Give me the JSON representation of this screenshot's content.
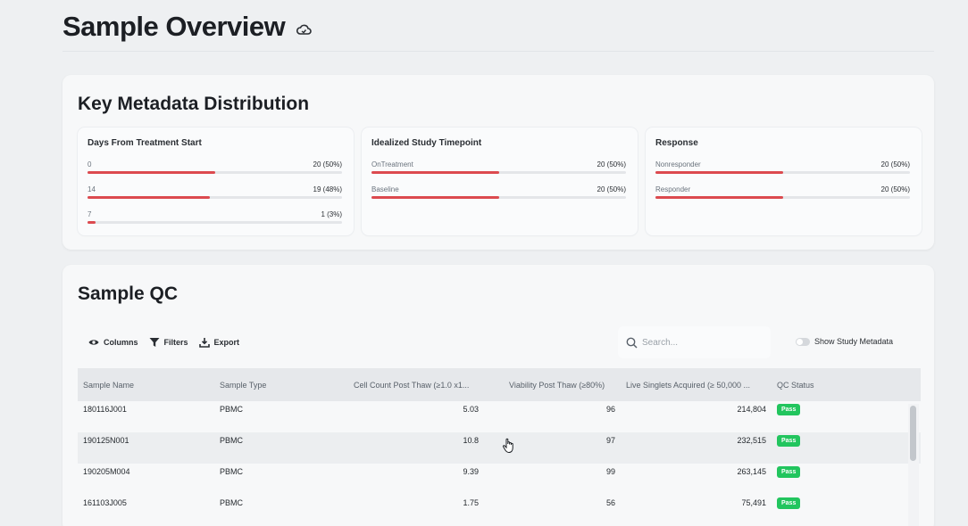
{
  "page": {
    "title": "Sample Overview",
    "title_icon": "cloud-icon"
  },
  "metadata": {
    "title": "Key Metadata Distribution",
    "groups": [
      {
        "title": "Days From Treatment Start",
        "rows": [
          {
            "label": "0",
            "value": "20 (50%)",
            "fraction": 0.5
          },
          {
            "label": "14",
            "value": "19 (48%)",
            "fraction": 0.48
          },
          {
            "label": "7",
            "value": "1 (3%)",
            "fraction": 0.03
          }
        ]
      },
      {
        "title": "Idealized Study Timepoint",
        "rows": [
          {
            "label": "OnTreatment",
            "value": "20 (50%)",
            "fraction": 0.5
          },
          {
            "label": "Baseline",
            "value": "20 (50%)",
            "fraction": 0.5
          }
        ]
      },
      {
        "title": "Response",
        "rows": [
          {
            "label": "Nonresponder",
            "value": "20 (50%)",
            "fraction": 0.5
          },
          {
            "label": "Responder",
            "value": "20 (50%)",
            "fraction": 0.5
          }
        ]
      }
    ]
  },
  "qc": {
    "title": "Sample QC",
    "toolbar": {
      "columns": "Columns",
      "filters": "Filters",
      "export": "Export"
    },
    "search": {
      "placeholder": "Search...",
      "value": ""
    },
    "toggle": {
      "label": "Show Study Metadata",
      "on": false
    },
    "columns": [
      "Sample Name",
      "Sample Type",
      "Cell Count Post Thaw (≥1.0 x1...",
      "Viability Post Thaw (≥80%)",
      "Live Singlets Acquired (≥ 50,000 ...",
      "QC Status"
    ],
    "rows": [
      [
        "180116J001",
        "PBMC",
        "5.03",
        "96",
        "214,804",
        "Pass"
      ],
      [
        "190125N001",
        "PBMC",
        "10.8",
        "97",
        "232,515",
        "Pass"
      ],
      [
        "190205M004",
        "PBMC",
        "9.39",
        "99",
        "263,145",
        "Pass"
      ],
      [
        "161103J005",
        "PBMC",
        "1.75",
        "56",
        "75,491",
        "Pass"
      ]
    ]
  },
  "colors": {
    "bar_fill": "#dc4a4f",
    "pass_badge": "#22c55e"
  }
}
